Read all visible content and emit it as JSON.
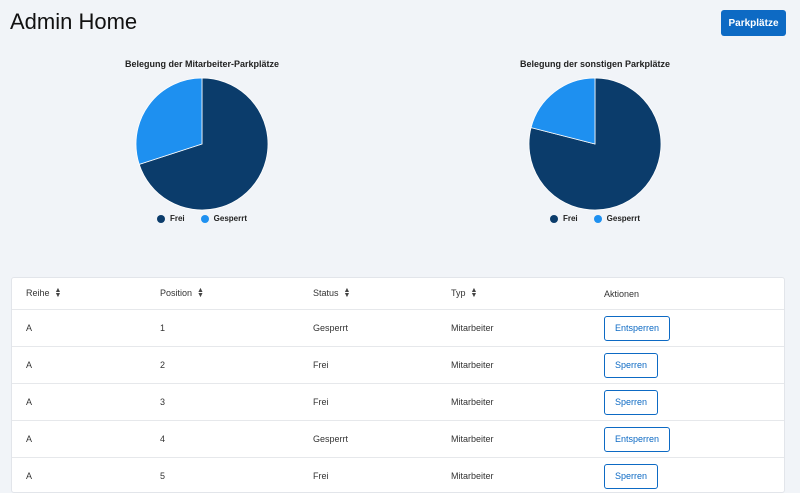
{
  "header": {
    "title": "Admin Home",
    "button_label": "Parkplätze"
  },
  "colors": {
    "frei": "#0b3c6b",
    "gesperrt": "#1e90f0",
    "primary": "#0d6ac4"
  },
  "charts": [
    {
      "title": "Belegung der Mitarbeiter-Parkplätze",
      "legend": [
        "Frei",
        "Gesperrt"
      ]
    },
    {
      "title": "Belegung der sonstigen Parkplätze",
      "legend": [
        "Frei",
        "Gesperrt"
      ]
    }
  ],
  "chart_data": [
    {
      "type": "pie",
      "title": "Belegung der Mitarbeiter-Parkplätze",
      "categories": [
        "Frei",
        "Gesperrt"
      ],
      "values": [
        70,
        30
      ],
      "legend": "bottom"
    },
    {
      "type": "pie",
      "title": "Belegung der sonstigen Parkplätze",
      "categories": [
        "Frei",
        "Gesperrt"
      ],
      "values": [
        79,
        21
      ],
      "legend": "bottom"
    }
  ],
  "table": {
    "columns": [
      "Reihe",
      "Position",
      "Status",
      "Typ",
      "Aktionen"
    ],
    "rows": [
      {
        "reihe": "A",
        "position": "1",
        "status": "Gesperrt",
        "typ": "Mitarbeiter",
        "action": "Entsperren"
      },
      {
        "reihe": "A",
        "position": "2",
        "status": "Frei",
        "typ": "Mitarbeiter",
        "action": "Sperren"
      },
      {
        "reihe": "A",
        "position": "3",
        "status": "Frei",
        "typ": "Mitarbeiter",
        "action": "Sperren"
      },
      {
        "reihe": "A",
        "position": "4",
        "status": "Gesperrt",
        "typ": "Mitarbeiter",
        "action": "Entsperren"
      },
      {
        "reihe": "A",
        "position": "5",
        "status": "Frei",
        "typ": "Mitarbeiter",
        "action": "Sperren"
      }
    ]
  }
}
